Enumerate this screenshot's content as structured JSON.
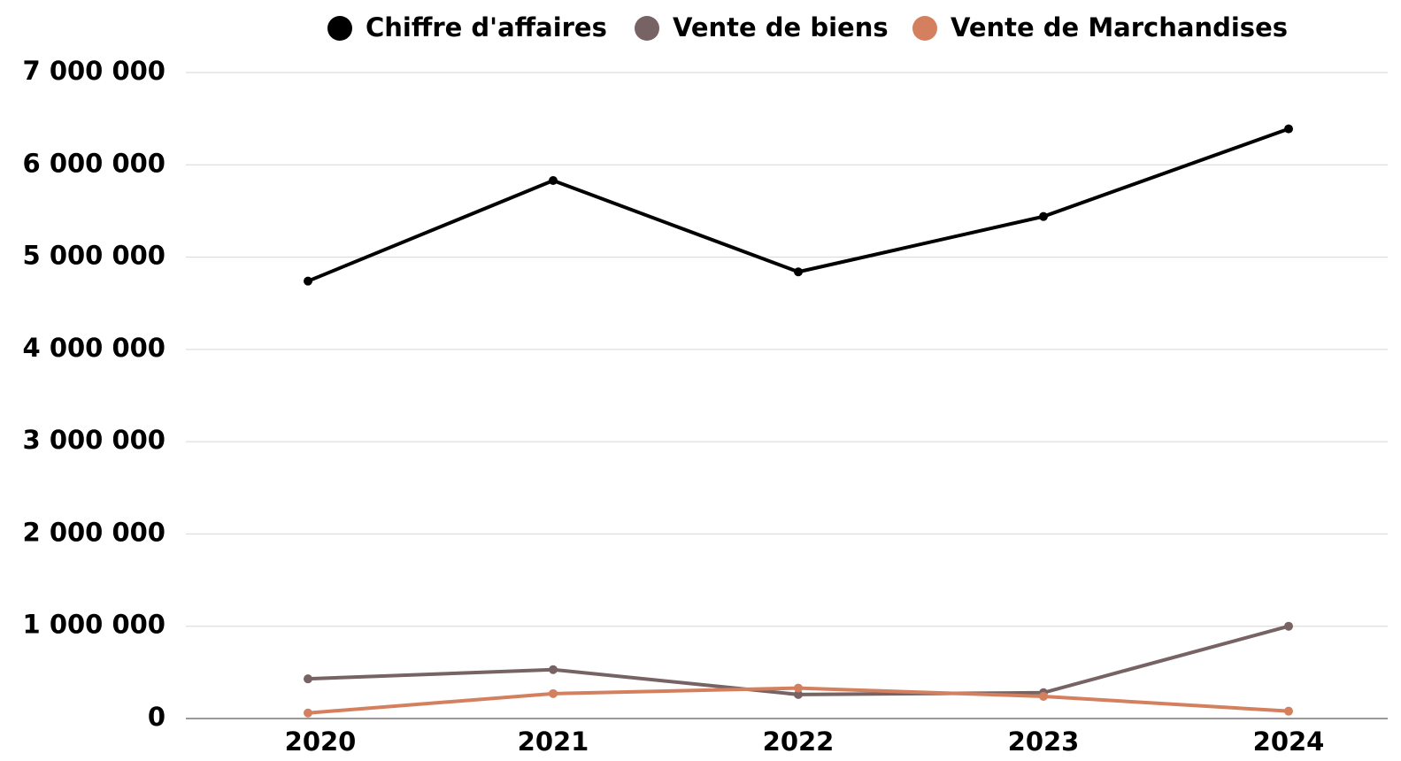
{
  "chart_data": {
    "type": "line",
    "categories": [
      "2020",
      "2021",
      "2022",
      "2023",
      "2024"
    ],
    "series": [
      {
        "name": "Chiffre d'affaires",
        "color": "#000000",
        "values": [
          4740000,
          5830000,
          4840000,
          5440000,
          6390000
        ]
      },
      {
        "name": "Vente de biens",
        "color": "#776363",
        "values": [
          430000,
          530000,
          260000,
          280000,
          1000000
        ]
      },
      {
        "name": "Vente de Marchandises",
        "color": "#d4805e",
        "values": [
          60000,
          270000,
          330000,
          240000,
          80000
        ]
      }
    ],
    "ylim": [
      0,
      7000000
    ],
    "yticks": [
      0,
      {
        "value": 1000000,
        "label": "1 000 000"
      },
      {
        "value": 2000000,
        "label": "2 000 000"
      },
      {
        "value": 3000000,
        "label": "3 000 000"
      },
      {
        "value": 4000000,
        "label": "4 000 000"
      },
      {
        "value": 5000000,
        "label": "5 000 000"
      },
      {
        "value": 6000000,
        "label": "6 000 000"
      },
      {
        "value": 7000000,
        "label": "7 000 000"
      }
    ],
    "grid": true,
    "legend": "top"
  }
}
